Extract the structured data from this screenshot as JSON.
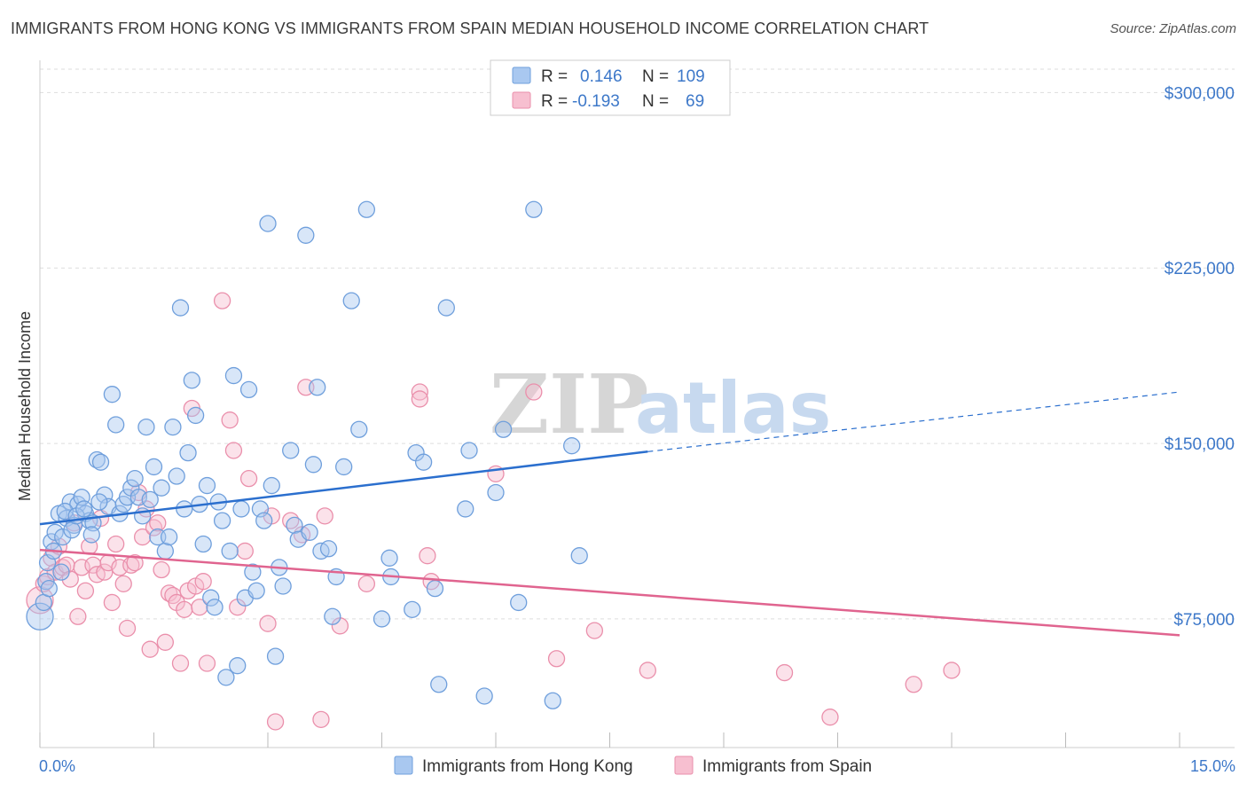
{
  "title": "IMMIGRANTS FROM HONG KONG VS IMMIGRANTS FROM SPAIN MEDIAN HOUSEHOLD INCOME CORRELATION CHART",
  "source": "Source: ZipAtlas.com",
  "watermark": {
    "zip": "ZIP",
    "atlas": "atlas"
  },
  "colors": {
    "hk_fill": "#a9c8f0",
    "hk_stroke": "#6f9fdc",
    "hk_line": "#2b6fce",
    "es_fill": "#f7bfd0",
    "es_stroke": "#ea8fab",
    "es_line": "#e0648f",
    "grid": "#dddddd",
    "tick_text": "#3d78c9"
  },
  "legend": {
    "rows": [
      {
        "r_label": "R =",
        "r_value": "0.146",
        "n_label": "N =",
        "n_value": "109"
      },
      {
        "r_label": "R =",
        "r_value": "-0.193",
        "n_label": "N =",
        "n_value": "69"
      }
    ]
  },
  "chart_data": {
    "type": "scatter",
    "xlabel": "",
    "ylabel": "Median Household Income",
    "xlim": [
      0,
      15
    ],
    "ylim": [
      20000,
      310000
    ],
    "x_tick_labels": [
      "0.0%",
      "15.0%"
    ],
    "y_ticks": [
      75000,
      150000,
      225000,
      300000
    ],
    "y_tick_labels": [
      "$75,000",
      "$150,000",
      "$225,000",
      "$300,000"
    ],
    "grid": true,
    "legend_position": "top-center",
    "series": [
      {
        "name": "Immigrants from Hong Kong",
        "color": "#6f9fdc",
        "trend": {
          "x": [
            0,
            8.0
          ],
          "y": [
            115500,
            146500
          ],
          "dashed_to": [
            15,
            172000
          ]
        },
        "points": [
          [
            0.0,
            76000
          ],
          [
            0.05,
            82000
          ],
          [
            0.1,
            99000
          ],
          [
            0.15,
            108000
          ],
          [
            0.2,
            112000
          ],
          [
            0.25,
            120000
          ],
          [
            0.3,
            110000
          ],
          [
            0.35,
            118000
          ],
          [
            0.4,
            125000
          ],
          [
            0.45,
            115000
          ],
          [
            0.5,
            124000
          ],
          [
            0.55,
            127000
          ],
          [
            0.6,
            120000
          ],
          [
            0.65,
            117000
          ],
          [
            0.7,
            116000
          ],
          [
            0.75,
            143000
          ],
          [
            0.8,
            142000
          ],
          [
            0.85,
            128000
          ],
          [
            0.9,
            123000
          ],
          [
            0.95,
            171000
          ],
          [
            1.0,
            158000
          ],
          [
            1.05,
            120000
          ],
          [
            1.1,
            124000
          ],
          [
            1.15,
            127000
          ],
          [
            1.2,
            131000
          ],
          [
            1.25,
            135000
          ],
          [
            1.3,
            127000
          ],
          [
            1.35,
            119000
          ],
          [
            1.4,
            157000
          ],
          [
            1.45,
            126000
          ],
          [
            1.5,
            140000
          ],
          [
            1.55,
            110000
          ],
          [
            1.6,
            131000
          ],
          [
            1.65,
            104000
          ],
          [
            1.7,
            110000
          ],
          [
            1.75,
            157000
          ],
          [
            1.8,
            136000
          ],
          [
            1.85,
            208000
          ],
          [
            1.9,
            122000
          ],
          [
            1.95,
            146000
          ],
          [
            2.0,
            177000
          ],
          [
            2.05,
            162000
          ],
          [
            2.1,
            124000
          ],
          [
            2.15,
            107000
          ],
          [
            2.2,
            132000
          ],
          [
            2.25,
            84000
          ],
          [
            2.3,
            80000
          ],
          [
            2.35,
            125000
          ],
          [
            2.4,
            117000
          ],
          [
            2.45,
            50000
          ],
          [
            2.5,
            104000
          ],
          [
            2.55,
            179000
          ],
          [
            2.6,
            55000
          ],
          [
            2.65,
            122000
          ],
          [
            2.7,
            84000
          ],
          [
            2.75,
            173000
          ],
          [
            2.8,
            95000
          ],
          [
            2.85,
            87000
          ],
          [
            2.9,
            122000
          ],
          [
            2.95,
            117000
          ],
          [
            3.0,
            244000
          ],
          [
            3.05,
            132000
          ],
          [
            3.1,
            59000
          ],
          [
            3.15,
            97000
          ],
          [
            3.2,
            89000
          ],
          [
            3.3,
            147000
          ],
          [
            3.35,
            115000
          ],
          [
            3.4,
            109000
          ],
          [
            3.5,
            239000
          ],
          [
            3.55,
            112000
          ],
          [
            3.6,
            141000
          ],
          [
            3.65,
            174000
          ],
          [
            3.7,
            104000
          ],
          [
            3.8,
            105000
          ],
          [
            3.85,
            76000
          ],
          [
            3.9,
            93000
          ],
          [
            4.0,
            140000
          ],
          [
            4.1,
            211000
          ],
          [
            4.2,
            156000
          ],
          [
            4.3,
            250000
          ],
          [
            4.5,
            75000
          ],
          [
            4.6,
            101000
          ],
          [
            4.62,
            93000
          ],
          [
            4.9,
            79000
          ],
          [
            4.95,
            146000
          ],
          [
            5.05,
            142000
          ],
          [
            5.2,
            88000
          ],
          [
            5.25,
            47000
          ],
          [
            5.35,
            208000
          ],
          [
            5.6,
            122000
          ],
          [
            5.65,
            147000
          ],
          [
            5.85,
            42000
          ],
          [
            6.0,
            129000
          ],
          [
            6.1,
            156000
          ],
          [
            6.3,
            82000
          ],
          [
            6.5,
            250000
          ],
          [
            6.75,
            40000
          ],
          [
            7.0,
            149000
          ],
          [
            7.1,
            102000
          ],
          [
            0.08,
            91000
          ],
          [
            0.12,
            88000
          ],
          [
            0.18,
            104000
          ],
          [
            0.28,
            95000
          ],
          [
            0.33,
            121000
          ],
          [
            0.42,
            113000
          ],
          [
            0.48,
            119000
          ],
          [
            0.58,
            122000
          ],
          [
            0.68,
            111000
          ],
          [
            0.78,
            125000
          ]
        ]
      },
      {
        "name": "Immigrants from Spain",
        "color": "#ea8fab",
        "trend": {
          "x": [
            0,
            15
          ],
          "y": [
            104500,
            68000
          ]
        },
        "points": [
          [
            0.0,
            83000
          ],
          [
            0.05,
            90000
          ],
          [
            0.1,
            93000
          ],
          [
            0.15,
            101000
          ],
          [
            0.2,
            95000
          ],
          [
            0.25,
            106000
          ],
          [
            0.3,
            97000
          ],
          [
            0.35,
            98000
          ],
          [
            0.4,
            92000
          ],
          [
            0.45,
            116000
          ],
          [
            0.5,
            76000
          ],
          [
            0.55,
            97000
          ],
          [
            0.6,
            87000
          ],
          [
            0.65,
            106000
          ],
          [
            0.7,
            98000
          ],
          [
            0.75,
            94000
          ],
          [
            0.8,
            118000
          ],
          [
            0.85,
            95000
          ],
          [
            0.9,
            99000
          ],
          [
            0.95,
            82000
          ],
          [
            1.0,
            107000
          ],
          [
            1.05,
            97000
          ],
          [
            1.1,
            90000
          ],
          [
            1.15,
            71000
          ],
          [
            1.2,
            98000
          ],
          [
            1.25,
            99000
          ],
          [
            1.3,
            129000
          ],
          [
            1.35,
            110000
          ],
          [
            1.4,
            122000
          ],
          [
            1.45,
            62000
          ],
          [
            1.5,
            114000
          ],
          [
            1.55,
            116000
          ],
          [
            1.6,
            96000
          ],
          [
            1.65,
            65000
          ],
          [
            1.7,
            86000
          ],
          [
            1.75,
            85000
          ],
          [
            1.8,
            82000
          ],
          [
            1.85,
            56000
          ],
          [
            1.9,
            79000
          ],
          [
            1.95,
            87000
          ],
          [
            2.0,
            165000
          ],
          [
            2.05,
            89000
          ],
          [
            2.1,
            80000
          ],
          [
            2.15,
            91000
          ],
          [
            2.2,
            56000
          ],
          [
            2.4,
            211000
          ],
          [
            2.5,
            160000
          ],
          [
            2.55,
            147000
          ],
          [
            2.6,
            80000
          ],
          [
            2.7,
            104000
          ],
          [
            2.75,
            135000
          ],
          [
            3.0,
            73000
          ],
          [
            3.05,
            119000
          ],
          [
            3.1,
            31000
          ],
          [
            3.3,
            117000
          ],
          [
            3.45,
            111000
          ],
          [
            3.5,
            174000
          ],
          [
            3.7,
            32000
          ],
          [
            3.75,
            119000
          ],
          [
            3.95,
            72000
          ],
          [
            4.3,
            90000
          ],
          [
            5.0,
            172000
          ],
          [
            5.1,
            102000
          ],
          [
            5.15,
            91000
          ],
          [
            6.0,
            137000
          ],
          [
            6.5,
            172000
          ],
          [
            6.8,
            58000
          ],
          [
            7.3,
            70000
          ],
          [
            8.0,
            53000
          ]
        ],
        "extra_points": [
          [
            9.8,
            52000
          ],
          [
            10.4,
            33000
          ],
          [
            11.5,
            47000
          ],
          [
            12.0,
            53000
          ],
          [
            5.0,
            169000
          ]
        ]
      }
    ]
  },
  "bottom_legend": [
    {
      "label": "Immigrants from Hong Kong"
    },
    {
      "label": "Immigrants from Spain"
    }
  ]
}
